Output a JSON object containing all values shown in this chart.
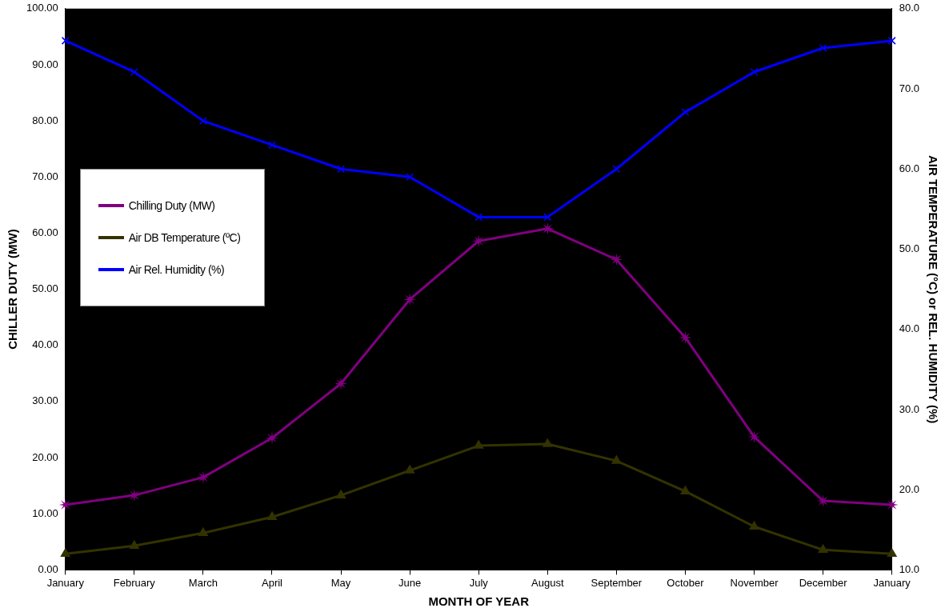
{
  "chart_data": {
    "type": "line",
    "xlabel": "MONTH OF YEAR",
    "ylabel": "CHILLER DUTY (MW)",
    "y2label": "AIR TEMPERATURE (°C) or REL. HUMIDITY (%)",
    "categories": [
      "January",
      "February",
      "March",
      "April",
      "May",
      "June",
      "July",
      "August",
      "September",
      "October",
      "November",
      "December",
      "January"
    ],
    "series": [
      {
        "name": "Chilling Duty (MW)",
        "color": "#800080",
        "marker": "star",
        "values": [
          11.6,
          13.3,
          16.5,
          23.5,
          33.2,
          48.2,
          58.6,
          60.8,
          55.3,
          41.4,
          23.7,
          12.3,
          11.6
        ]
      },
      {
        "name": "Air DB Temperature (ºC)",
        "color": "#333300",
        "marker": "triangle",
        "axis": "y2",
        "values": [
          12.0,
          13.0,
          14.6,
          16.6,
          19.3,
          22.4,
          25.5,
          25.7,
          23.6,
          19.8,
          15.4,
          12.5,
          12.0
        ]
      },
      {
        "name": "Air Rel. Humidity (%)",
        "color": "#0000ff",
        "marker": "cross",
        "axis": "y2",
        "values": [
          76.0,
          72.1,
          66.0,
          63.0,
          60.0,
          59.0,
          54.0,
          54.0,
          60.0,
          67.1,
          72.1,
          75.1,
          76.0
        ]
      }
    ],
    "ylim": [
      0,
      100
    ],
    "yticks": [
      {
        "value": 0,
        "label": "0.00"
      },
      {
        "value": 10,
        "label": "10.00"
      },
      {
        "value": 20,
        "label": "20.00"
      },
      {
        "value": 30,
        "label": "30.00"
      },
      {
        "value": 40,
        "label": "40.00"
      },
      {
        "value": 50,
        "label": "50.00"
      },
      {
        "value": 60,
        "label": "60.00"
      },
      {
        "value": 70,
        "label": "70.00"
      },
      {
        "value": 80,
        "label": "80.00"
      },
      {
        "value": 90,
        "label": "90.00"
      },
      {
        "value": 100,
        "label": "100.00"
      }
    ],
    "y2lim": [
      10,
      80
    ],
    "y2ticks": [
      {
        "value": 10,
        "label": "10.0"
      },
      {
        "value": 20,
        "label": "20.0"
      },
      {
        "value": 30,
        "label": "30.0"
      },
      {
        "value": 40,
        "label": "40.0"
      },
      {
        "value": 50,
        "label": "50.0"
      },
      {
        "value": 60,
        "label": "60.0"
      },
      {
        "value": 70,
        "label": "70.0"
      },
      {
        "value": 80,
        "label": "80.0"
      }
    ],
    "grid": false,
    "legend": "left"
  }
}
